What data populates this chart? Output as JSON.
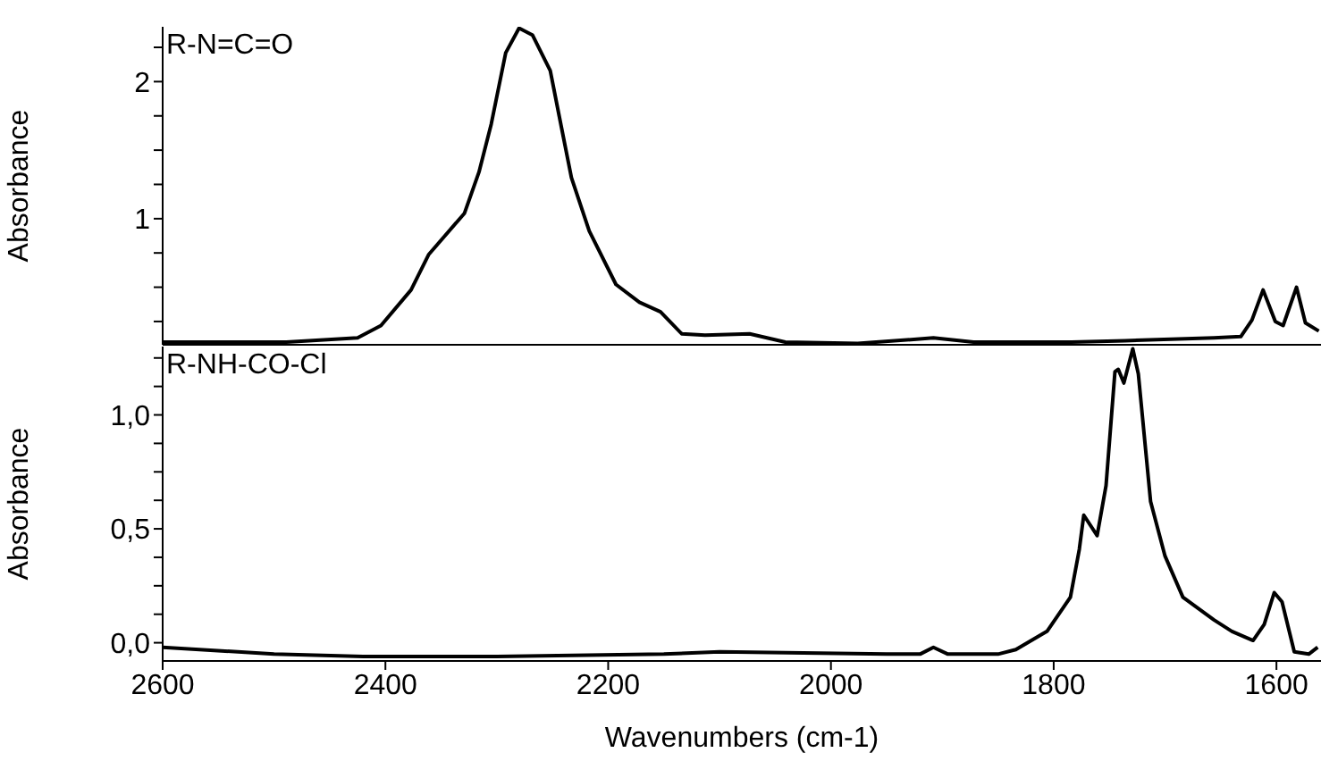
{
  "chart_data": [
    {
      "type": "line",
      "annotations": [
        "R-N=C=O"
      ],
      "ylabel": "Absorbance",
      "xlim": [
        2600,
        1560
      ],
      "xticks": [
        2600,
        2400,
        2200,
        2000,
        1800,
        1600
      ],
      "ylim": [
        0.08,
        2.4
      ],
      "yticks": [
        {
          "value": 0.25,
          "label": null
        },
        {
          "value": 0.5,
          "label": null
        },
        {
          "value": 0.75,
          "label": null
        },
        1,
        {
          "value": 1.25,
          "label": null
        },
        {
          "value": 1.5,
          "label": null
        },
        {
          "value": 1.75,
          "label": null
        },
        2,
        {
          "value": 2.25,
          "label": null
        }
      ],
      "tick_labels": "y",
      "series": [
        {
          "color": "#000000",
          "x": [
            2600,
            2489,
            2425,
            2404,
            2377,
            2361,
            2329,
            2316,
            2305,
            2292,
            2280,
            2268,
            2252,
            2244,
            2233,
            2217,
            2193,
            2172,
            2153,
            2134,
            2113,
            2073,
            2041,
            1976,
            1908,
            1872,
            1784,
            1736,
            1656,
            1632,
            1622,
            1612,
            1601,
            1594,
            1582,
            1574,
            1562
          ],
          "values": [
            0.1,
            0.1,
            0.13,
            0.22,
            0.48,
            0.74,
            1.04,
            1.34,
            1.69,
            2.21,
            2.39,
            2.34,
            2.08,
            1.75,
            1.3,
            0.91,
            0.52,
            0.39,
            0.32,
            0.16,
            0.15,
            0.16,
            0.1,
            0.09,
            0.13,
            0.1,
            0.1,
            0.11,
            0.13,
            0.14,
            0.26,
            0.48,
            0.25,
            0.22,
            0.5,
            0.24,
            0.18
          ]
        }
      ]
    },
    {
      "type": "line",
      "annotations": [
        "R-NH-CO-Cl"
      ],
      "ylabel": "Absorbance",
      "xlabel": "Wavenumbers (cm-1)",
      "xlim": [
        2600,
        1560
      ],
      "xticks": [
        2600,
        2400,
        2200,
        2000,
        1800,
        1600
      ],
      "ylim": [
        -0.08,
        1.3
      ],
      "yticks": [
        {
          "value": 0,
          "label": "0,0"
        },
        {
          "value": 0.125,
          "label": null
        },
        {
          "value": 0.25,
          "label": null
        },
        {
          "value": 0.375,
          "label": null
        },
        {
          "value": 0.5,
          "label": "0,5"
        },
        {
          "value": 0.625,
          "label": null
        },
        {
          "value": 0.75,
          "label": null
        },
        {
          "value": 0.875,
          "label": null
        },
        {
          "value": 1,
          "label": "1,0"
        },
        {
          "value": 1.125,
          "label": null
        },
        {
          "value": 1.25,
          "label": null
        }
      ],
      "series": [
        {
          "color": "#000000",
          "x": [
            2600,
            2500,
            2420,
            2300,
            2150,
            2100,
            1950,
            1920,
            1908,
            1895,
            1850,
            1834,
            1806,
            1785,
            1777,
            1773,
            1761,
            1753,
            1745,
            1742,
            1737,
            1729,
            1724,
            1713,
            1700,
            1684,
            1656,
            1640,
            1621,
            1611,
            1602,
            1595,
            1584,
            1571,
            1563
          ],
          "values": [
            -0.02,
            -0.05,
            -0.06,
            -0.06,
            -0.05,
            -0.04,
            -0.05,
            -0.05,
            -0.02,
            -0.05,
            -0.05,
            -0.03,
            0.05,
            0.2,
            0.41,
            0.56,
            0.47,
            0.69,
            1.19,
            1.2,
            1.14,
            1.29,
            1.18,
            0.62,
            0.38,
            0.2,
            0.1,
            0.05,
            0.01,
            0.08,
            0.22,
            0.18,
            -0.04,
            -0.05,
            -0.02
          ]
        }
      ]
    }
  ]
}
